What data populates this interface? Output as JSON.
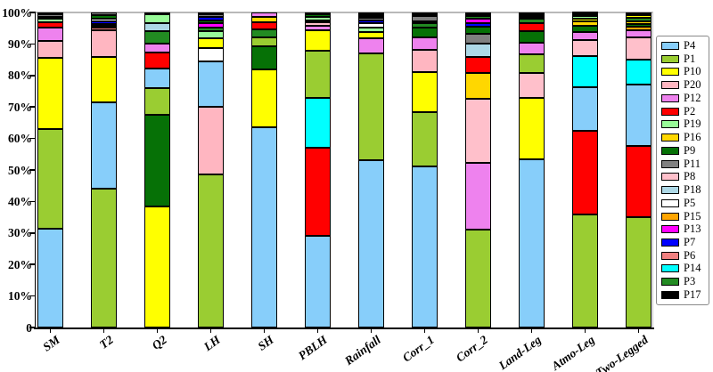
{
  "chart_data": {
    "type": "bar",
    "variant": "stacked-percentage",
    "title": "",
    "xlabel": "",
    "ylabel": "",
    "ylim": [
      0,
      100
    ],
    "grid": false,
    "legend_position": "right-outside",
    "yticks": [
      "0",
      "10%",
      "20%",
      "30%",
      "40%",
      "50%",
      "60%",
      "70%",
      "80%",
      "90%",
      "100%"
    ],
    "categories": [
      "SM",
      "T2",
      "Q2",
      "LH",
      "SH",
      "PBLH",
      "Rainfall",
      "Corr_1",
      "Corr_2",
      "Land-Leg",
      "Atmo-Leg",
      "Two-Legged"
    ],
    "legend_order": [
      "P4",
      "P1",
      "P10",
      "P20",
      "P12",
      "P2",
      "P19",
      "P16",
      "P9",
      "P11",
      "P8",
      "P18",
      "P5",
      "P15",
      "P13",
      "P7",
      "P6",
      "P14",
      "P3",
      "P17"
    ],
    "palette": {
      "P4": "#87CEFA",
      "P1": "#9ACD32",
      "P10": "#FFFF00",
      "P20": "#FFB6C1",
      "P12": "#EE82EE",
      "P2": "#FF0000",
      "P19": "#98FB98",
      "P16": "#FFD700",
      "P9": "#067106",
      "P11": "#808080",
      "P8": "#FFC0CB",
      "P18": "#ADD8E6",
      "P5": "#FFFFFF",
      "P15": "#FFA500",
      "P13": "#FF00FF",
      "P7": "#0000FF",
      "P6": "#F08080",
      "P14": "#00FFFF",
      "P3": "#228B22",
      "P17": "#000000"
    },
    "bars": [
      {
        "category": "SM",
        "segments": [
          {
            "p": "P4",
            "v": 31.5
          },
          {
            "p": "P1",
            "v": 31.5
          },
          {
            "p": "P10",
            "v": 22.5
          },
          {
            "p": "P20",
            "v": 5.5
          },
          {
            "p": "P12",
            "v": 4.3
          },
          {
            "p": "P2",
            "v": 1.7
          },
          {
            "p": "P19",
            "v": 0.9
          },
          {
            "p": "P9",
            "v": 0.8
          },
          {
            "p": "P11",
            "v": 0.8
          },
          {
            "p": "P17",
            "v": 0.5
          }
        ]
      },
      {
        "category": "T2",
        "segments": [
          {
            "p": "P1",
            "v": 44.0
          },
          {
            "p": "P4",
            "v": 27.5
          },
          {
            "p": "P10",
            "v": 14.3
          },
          {
            "p": "P20",
            "v": 8.7
          },
          {
            "p": "P6",
            "v": 0.8
          },
          {
            "p": "P17",
            "v": 1.0
          },
          {
            "p": "P7",
            "v": 1.0
          },
          {
            "p": "P5",
            "v": 0.7
          },
          {
            "p": "P9",
            "v": 1.2
          },
          {
            "p": "P11",
            "v": 0.8
          }
        ]
      },
      {
        "category": "Q2",
        "segments": [
          {
            "p": "P10",
            "v": 38.5
          },
          {
            "p": "P9",
            "v": 29.0
          },
          {
            "p": "P1",
            "v": 8.5
          },
          {
            "p": "P4",
            "v": 6.1
          },
          {
            "p": "P2",
            "v": 5.3
          },
          {
            "p": "P12",
            "v": 2.8
          },
          {
            "p": "P3",
            "v": 3.8
          },
          {
            "p": "P18",
            "v": 2.6
          },
          {
            "p": "P19",
            "v": 2.8
          },
          {
            "p": "P17",
            "v": 0.6
          }
        ]
      },
      {
        "category": "LH",
        "segments": [
          {
            "p": "P1",
            "v": 48.5
          },
          {
            "p": "P20",
            "v": 21.5
          },
          {
            "p": "P4",
            "v": 14.5
          },
          {
            "p": "P5",
            "v": 4.3
          },
          {
            "p": "P10",
            "v": 3.0
          },
          {
            "p": "P19",
            "v": 2.2
          },
          {
            "p": "P3",
            "v": 1.3
          },
          {
            "p": "P13",
            "v": 1.2
          },
          {
            "p": "P9",
            "v": 1.1
          },
          {
            "p": "P7",
            "v": 1.0
          },
          {
            "p": "P11",
            "v": 0.9
          },
          {
            "p": "P17",
            "v": 0.5
          }
        ]
      },
      {
        "category": "SH",
        "segments": [
          {
            "p": "P4",
            "v": 63.5
          },
          {
            "p": "P10",
            "v": 18.3
          },
          {
            "p": "P9",
            "v": 7.6
          },
          {
            "p": "P1",
            "v": 2.8
          },
          {
            "p": "P3",
            "v": 2.4
          },
          {
            "p": "P2",
            "v": 2.4
          },
          {
            "p": "P16",
            "v": 1.7
          },
          {
            "p": "P12",
            "v": 1.3
          }
        ]
      },
      {
        "category": "PBLH",
        "segments": [
          {
            "p": "P4",
            "v": 29.0
          },
          {
            "p": "P2",
            "v": 28.0
          },
          {
            "p": "P14",
            "v": 16.0
          },
          {
            "p": "P1",
            "v": 15.0
          },
          {
            "p": "P10",
            "v": 6.5
          },
          {
            "p": "P12",
            "v": 1.2
          },
          {
            "p": "P8",
            "v": 1.3
          },
          {
            "p": "P5",
            "v": 0.6
          },
          {
            "p": "P19",
            "v": 1.1
          },
          {
            "p": "P9",
            "v": 0.8
          },
          {
            "p": "P17",
            "v": 0.5
          }
        ]
      },
      {
        "category": "Rainfall",
        "segments": [
          {
            "p": "P4",
            "v": 53.0
          },
          {
            "p": "P1",
            "v": 34.0
          },
          {
            "p": "P12",
            "v": 4.7
          },
          {
            "p": "P10",
            "v": 2.0
          },
          {
            "p": "P19",
            "v": 1.5
          },
          {
            "p": "P5",
            "v": 1.4
          },
          {
            "p": "P7",
            "v": 1.0
          },
          {
            "p": "P11",
            "v": 0.6
          },
          {
            "p": "P17",
            "v": 1.8
          }
        ]
      },
      {
        "category": "Corr_1",
        "segments": [
          {
            "p": "P4",
            "v": 51.0
          },
          {
            "p": "P1",
            "v": 17.3
          },
          {
            "p": "P10",
            "v": 12.8
          },
          {
            "p": "P20",
            "v": 7.1
          },
          {
            "p": "P12",
            "v": 3.8
          },
          {
            "p": "P9",
            "v": 3.2
          },
          {
            "p": "P3",
            "v": 1.4
          },
          {
            "p": "P2",
            "v": 0.6
          },
          {
            "p": "P11",
            "v": 1.6
          },
          {
            "p": "P17",
            "v": 1.2
          }
        ]
      },
      {
        "category": "Corr_2",
        "segments": [
          {
            "p": "P1",
            "v": 31.0
          },
          {
            "p": "P12",
            "v": 21.3
          },
          {
            "p": "P8",
            "v": 20.4
          },
          {
            "p": "P16",
            "v": 8.0
          },
          {
            "p": "P2",
            "v": 5.2
          },
          {
            "p": "P18",
            "v": 4.1
          },
          {
            "p": "P11",
            "v": 3.3
          },
          {
            "p": "P9",
            "v": 2.2
          },
          {
            "p": "P7",
            "v": 1.2
          },
          {
            "p": "P13",
            "v": 1.2
          },
          {
            "p": "P3",
            "v": 1.1
          },
          {
            "p": "P17",
            "v": 1.0
          }
        ]
      },
      {
        "category": "Land-Leg",
        "segments": [
          {
            "p": "P4",
            "v": 53.5
          },
          {
            "p": "P10",
            "v": 19.4
          },
          {
            "p": "P8",
            "v": 8.0
          },
          {
            "p": "P1",
            "v": 5.7
          },
          {
            "p": "P12",
            "v": 3.8
          },
          {
            "p": "P9",
            "v": 3.7
          },
          {
            "p": "P2",
            "v": 2.6
          },
          {
            "p": "P3",
            "v": 1.3
          },
          {
            "p": "P16",
            "v": 0.5
          },
          {
            "p": "P11",
            "v": 0.5
          },
          {
            "p": "P17",
            "v": 1.0
          }
        ]
      },
      {
        "category": "Atmo-Leg",
        "segments": [
          {
            "p": "P1",
            "v": 36.0
          },
          {
            "p": "P2",
            "v": 26.5
          },
          {
            "p": "P4",
            "v": 13.7
          },
          {
            "p": "P14",
            "v": 10.0
          },
          {
            "p": "P8",
            "v": 5.1
          },
          {
            "p": "P12",
            "v": 2.5
          },
          {
            "p": "P9",
            "v": 2.0
          },
          {
            "p": "P16",
            "v": 1.3
          },
          {
            "p": "P10",
            "v": 0.9
          },
          {
            "p": "P19",
            "v": 0.9
          },
          {
            "p": "P7",
            "v": 0.4
          },
          {
            "p": "P17",
            "v": 0.7
          }
        ]
      },
      {
        "category": "Two-Legged",
        "segments": [
          {
            "p": "P1",
            "v": 35.0
          },
          {
            "p": "P2",
            "v": 22.5
          },
          {
            "p": "P4",
            "v": 19.5
          },
          {
            "p": "P14",
            "v": 8.0
          },
          {
            "p": "P8",
            "v": 7.0
          },
          {
            "p": "P12",
            "v": 2.3
          },
          {
            "p": "P15",
            "v": 1.2
          },
          {
            "p": "P9",
            "v": 0.8
          },
          {
            "p": "P16",
            "v": 0.9
          },
          {
            "p": "P3",
            "v": 1.1
          },
          {
            "p": "P10",
            "v": 0.9
          },
          {
            "p": "P17",
            "v": 0.8
          }
        ]
      }
    ]
  }
}
